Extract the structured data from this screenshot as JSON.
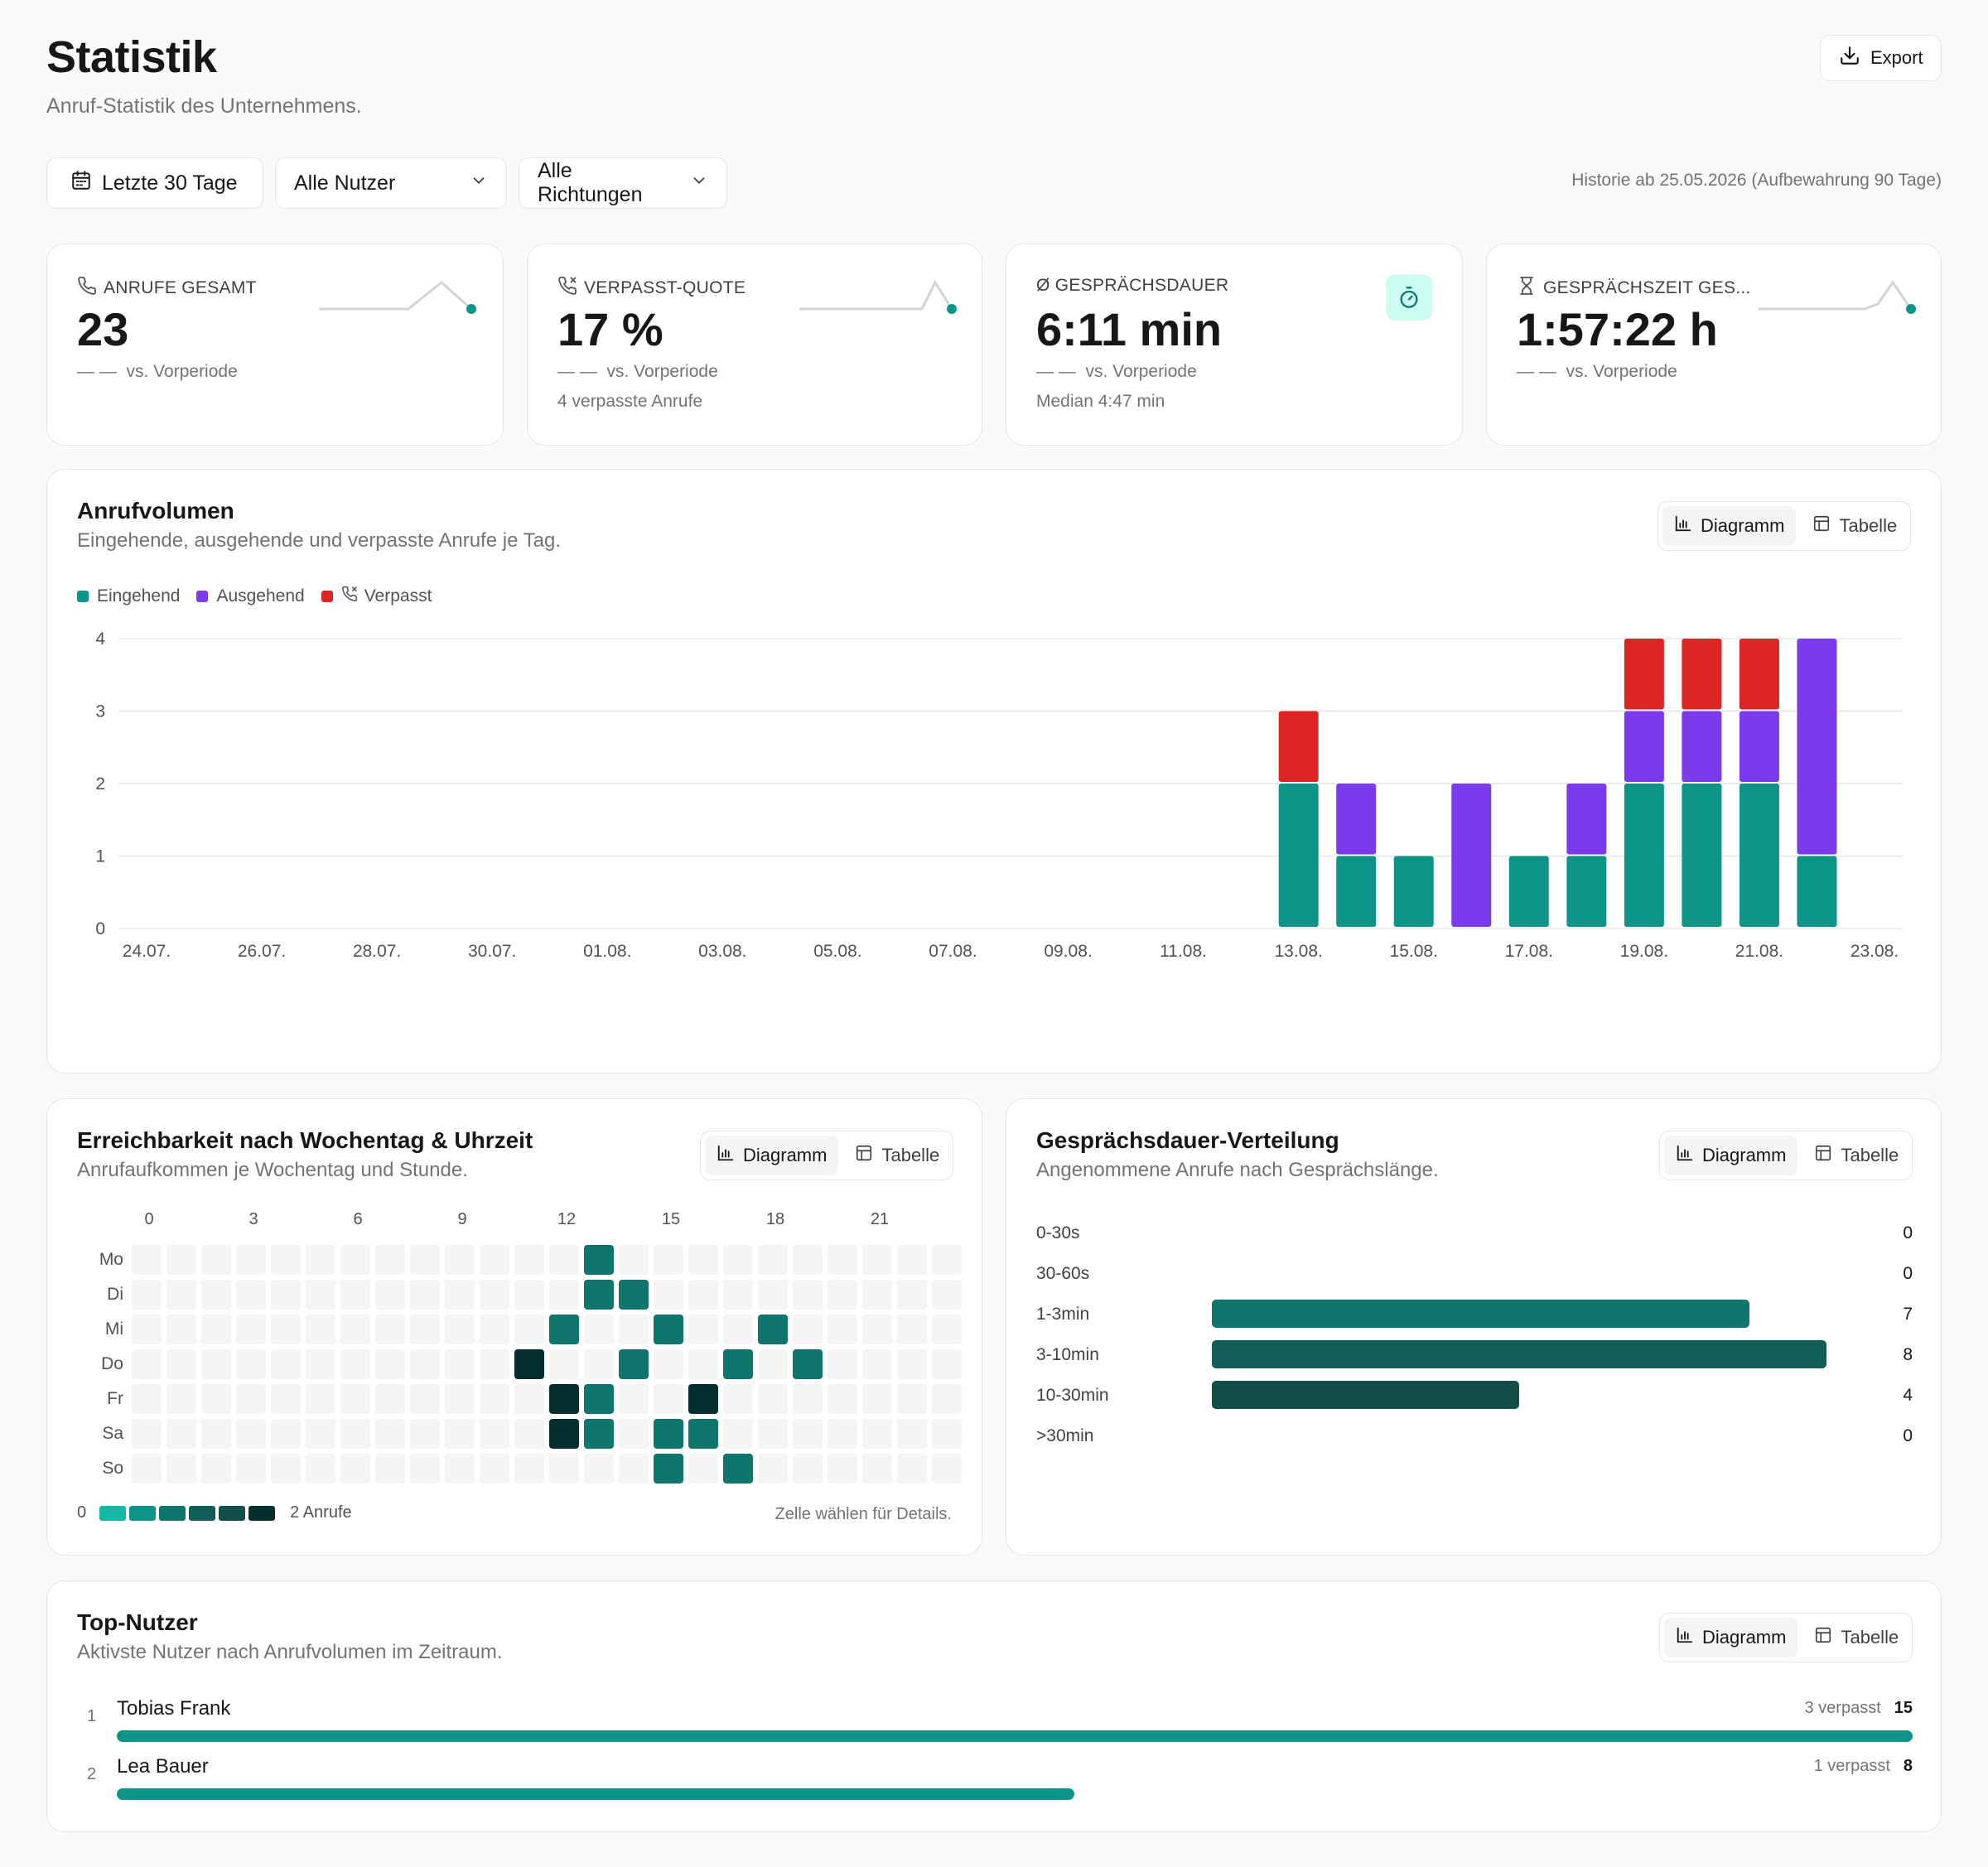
{
  "page": {
    "title": "Statistik",
    "subtitle": "Anruf-Statistik des Unternehmens."
  },
  "export_label": "Export",
  "filters": {
    "period": "Letzte 30 Tage",
    "users": "Alle Nutzer",
    "direction": "Alle Richtungen"
  },
  "history_note": "Historie ab 25.05.2026 (Aufbewahrung 90 Tage)",
  "kpis": [
    {
      "label": "ANRUFE GESAMT",
      "value": "23",
      "dash": "— —",
      "compare": "vs. Vorperiode",
      "sub": ""
    },
    {
      "label": "VERPASST-QUOTE",
      "value": "17 %",
      "dash": "— —",
      "compare": "vs. Vorperiode",
      "sub": "4 verpasste Anrufe"
    },
    {
      "label": "Ø GESPRÄCHSDAUER",
      "value": "6:11 min",
      "dash": "— —",
      "compare": "vs. Vorperiode",
      "sub": "Median 4:47 min"
    },
    {
      "label": "GESPRÄCHSZEIT GES...",
      "value": "1:57:22 h",
      "dash": "— —",
      "compare": "vs. Vorperiode",
      "sub": ""
    }
  ],
  "toggle": {
    "chart": "Diagramm",
    "table": "Tabelle"
  },
  "volume": {
    "title": "Anrufvolumen",
    "subtitle": "Eingehende, ausgehende und verpasste Anrufe je Tag.",
    "legend": [
      "Eingehend",
      "Ausgehend",
      "Verpasst"
    ]
  },
  "colors": {
    "incoming": "#0d9488",
    "outgoing": "#7c3aed",
    "missed": "#dc2626",
    "teal": "#0f766e"
  },
  "chart_data": {
    "type": "bar",
    "stacked": true,
    "categories": [
      "24.07.",
      "25.07.",
      "26.07.",
      "27.07.",
      "28.07.",
      "29.07.",
      "30.07.",
      "31.07.",
      "01.08.",
      "02.08.",
      "03.08.",
      "04.08.",
      "05.08.",
      "06.08.",
      "07.08.",
      "08.08.",
      "09.08.",
      "10.08.",
      "11.08.",
      "12.08.",
      "13.08.",
      "14.08.",
      "15.08.",
      "16.08.",
      "17.08.",
      "18.08.",
      "19.08.",
      "20.08.",
      "21.08.",
      "22.08.",
      "23.08."
    ],
    "tick_labels": [
      "24.07.",
      "26.07.",
      "28.07.",
      "30.07.",
      "01.08.",
      "03.08.",
      "05.08.",
      "07.08.",
      "09.08.",
      "11.08.",
      "13.08.",
      "15.08.",
      "17.08.",
      "19.08.",
      "21.08.",
      "23.08."
    ],
    "series": [
      {
        "name": "Eingehend",
        "values": [
          0,
          0,
          0,
          0,
          0,
          0,
          0,
          0,
          0,
          0,
          0,
          0,
          0,
          0,
          0,
          0,
          0,
          0,
          0,
          0,
          2,
          1,
          1,
          0,
          1,
          1,
          2,
          2,
          2,
          1,
          0
        ]
      },
      {
        "name": "Ausgehend",
        "values": [
          0,
          0,
          0,
          0,
          0,
          0,
          0,
          0,
          0,
          0,
          0,
          0,
          0,
          0,
          0,
          0,
          0,
          0,
          0,
          0,
          0,
          1,
          0,
          2,
          0,
          1,
          1,
          1,
          1,
          3,
          0
        ]
      },
      {
        "name": "Verpasst",
        "values": [
          0,
          0,
          0,
          0,
          0,
          0,
          0,
          0,
          0,
          0,
          0,
          0,
          0,
          0,
          0,
          0,
          0,
          0,
          0,
          0,
          1,
          0,
          0,
          0,
          0,
          0,
          1,
          1,
          1,
          0,
          0
        ]
      }
    ],
    "ylim": [
      0,
      4
    ],
    "yticks": [
      0,
      1,
      2,
      3,
      4
    ],
    "grid": true,
    "legend_position": "top-left"
  },
  "heatmap": {
    "title": "Erreichbarkeit nach Wochentag & Uhrzeit",
    "subtitle": "Anrufaufkommen je Wochentag und Stunde.",
    "hour_labels": [
      "0",
      "3",
      "6",
      "9",
      "12",
      "15",
      "18",
      "21"
    ],
    "days": [
      "Mo",
      "Di",
      "Mi",
      "Do",
      "Fr",
      "Sa",
      "So"
    ],
    "cells": [
      {
        "day": 0,
        "hour": 13,
        "count": 1
      },
      {
        "day": 1,
        "hour": 13,
        "count": 1
      },
      {
        "day": 1,
        "hour": 14,
        "count": 1
      },
      {
        "day": 2,
        "hour": 12,
        "count": 1
      },
      {
        "day": 2,
        "hour": 15,
        "count": 1
      },
      {
        "day": 2,
        "hour": 18,
        "count": 1
      },
      {
        "day": 3,
        "hour": 11,
        "count": 2
      },
      {
        "day": 3,
        "hour": 14,
        "count": 1
      },
      {
        "day": 3,
        "hour": 17,
        "count": 1
      },
      {
        "day": 3,
        "hour": 19,
        "count": 1
      },
      {
        "day": 4,
        "hour": 12,
        "count": 2
      },
      {
        "day": 4,
        "hour": 13,
        "count": 1
      },
      {
        "day": 4,
        "hour": 16,
        "count": 2
      },
      {
        "day": 5,
        "hour": 12,
        "count": 2
      },
      {
        "day": 5,
        "hour": 13,
        "count": 1
      },
      {
        "day": 5,
        "hour": 15,
        "count": 1
      },
      {
        "day": 5,
        "hour": 16,
        "count": 1
      },
      {
        "day": 6,
        "hour": 15,
        "count": 1
      },
      {
        "day": 6,
        "hour": 17,
        "count": 1
      }
    ],
    "scale_min": "0",
    "scale_max": "2 Anrufe",
    "scale_colors": [
      "#14b8a6",
      "#0d9488",
      "#0f766e",
      "#115e59",
      "#134e4a",
      "#042f2e"
    ],
    "hint": "Zelle wählen für Details."
  },
  "duration": {
    "title": "Gesprächsdauer-Verteilung",
    "subtitle": "Angenommene Anrufe nach Gesprächslänge.",
    "max": 8,
    "rows": [
      {
        "label": "0-30s",
        "value": 0,
        "color": "#0f766e"
      },
      {
        "label": "30-60s",
        "value": 0,
        "color": "#0f766e"
      },
      {
        "label": "1-3min",
        "value": 7,
        "color": "#0f766e"
      },
      {
        "label": "3-10min",
        "value": 8,
        "color": "#115e59"
      },
      {
        "label": "10-30min",
        "value": 4,
        "color": "#134e4a"
      },
      {
        "label": ">30min",
        "value": 0,
        "color": "#134e4a"
      }
    ]
  },
  "top_users": {
    "title": "Top-Nutzer",
    "subtitle": "Aktivste Nutzer nach Anrufvolumen im Zeitraum.",
    "max": 15,
    "users": [
      {
        "rank": "1",
        "name": "Tobias Frank",
        "missed": "3 verpasst",
        "total": 15
      },
      {
        "rank": "2",
        "name": "Lea Bauer",
        "missed": "1 verpasst",
        "total": 8
      }
    ]
  }
}
